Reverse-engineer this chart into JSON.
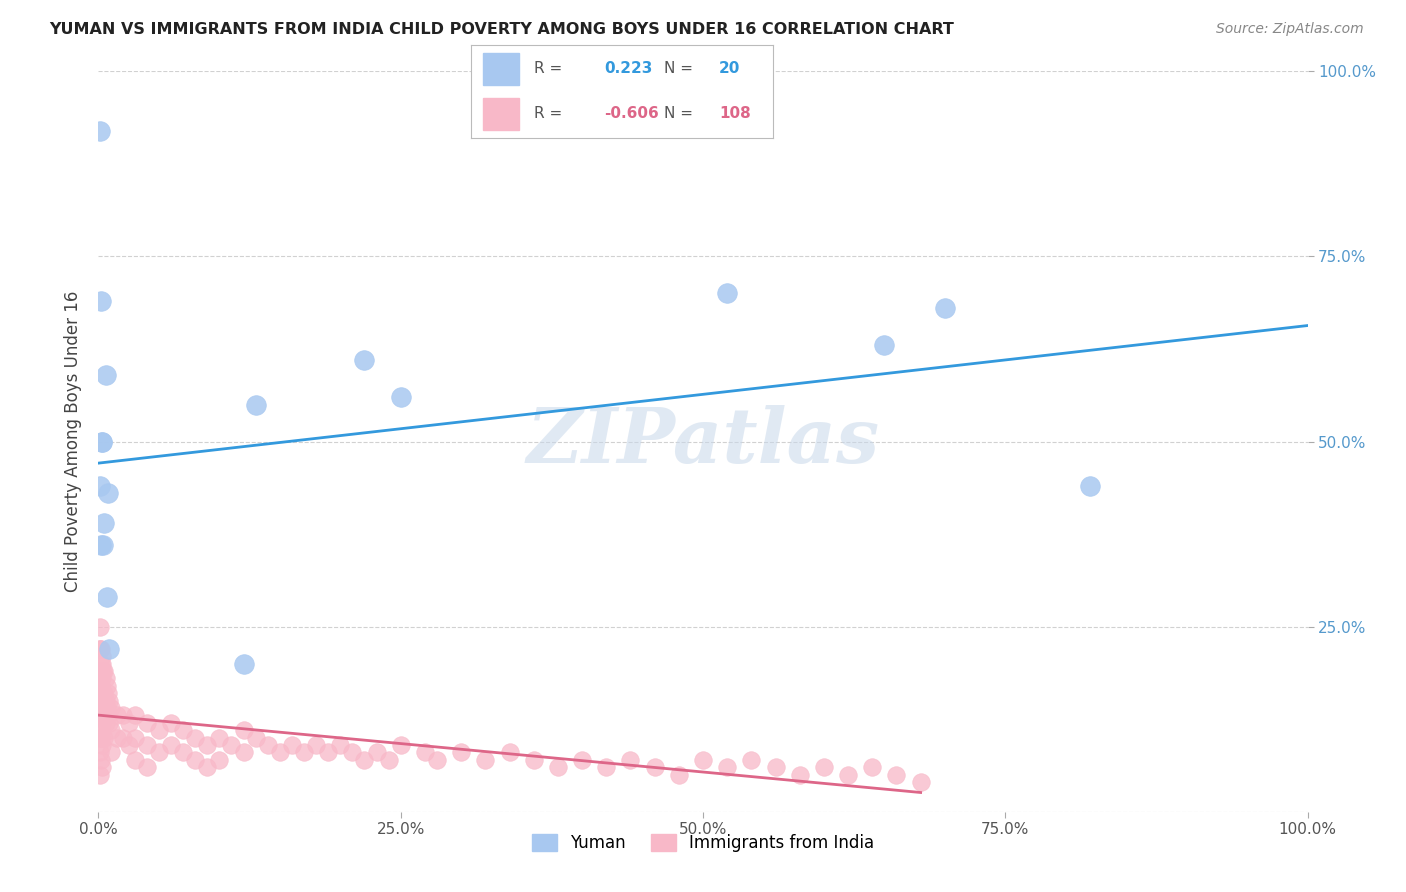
{
  "title": "YUMAN VS IMMIGRANTS FROM INDIA CHILD POVERTY AMONG BOYS UNDER 16 CORRELATION CHART",
  "source": "Source: ZipAtlas.com",
  "ylabel": "Child Poverty Among Boys Under 16",
  "background_color": "#ffffff",
  "grid_color": "#cccccc",
  "watermark": "ZIPatlas",
  "series1": {
    "label": "Yuman",
    "color": "#a8c8f0",
    "line_color": "#3399dd",
    "R": 0.223,
    "N": 20,
    "x": [
      0.001,
      0.001,
      0.002,
      0.002,
      0.003,
      0.003,
      0.004,
      0.005,
      0.006,
      0.007,
      0.008,
      0.009,
      0.12,
      0.13,
      0.22,
      0.25,
      0.52,
      0.65,
      0.7,
      0.82
    ],
    "y": [
      0.44,
      0.92,
      0.69,
      0.36,
      0.5,
      0.5,
      0.36,
      0.39,
      0.59,
      0.29,
      0.43,
      0.22,
      0.2,
      0.55,
      0.61,
      0.56,
      0.7,
      0.63,
      0.68,
      0.44
    ]
  },
  "series2": {
    "label": "Immigrants from India",
    "color": "#f8b8c8",
    "line_color": "#dd6688",
    "R": -0.606,
    "N": 108,
    "x": [
      0.001,
      0.001,
      0.001,
      0.001,
      0.001,
      0.001,
      0.001,
      0.001,
      0.001,
      0.001,
      0.002,
      0.002,
      0.002,
      0.002,
      0.002,
      0.002,
      0.002,
      0.002,
      0.002,
      0.002,
      0.003,
      0.003,
      0.003,
      0.003,
      0.003,
      0.003,
      0.003,
      0.004,
      0.004,
      0.004,
      0.005,
      0.005,
      0.005,
      0.005,
      0.006,
      0.006,
      0.006,
      0.007,
      0.007,
      0.008,
      0.008,
      0.009,
      0.009,
      0.01,
      0.01,
      0.01,
      0.015,
      0.015,
      0.02,
      0.02,
      0.025,
      0.025,
      0.03,
      0.03,
      0.03,
      0.04,
      0.04,
      0.04,
      0.05,
      0.05,
      0.06,
      0.06,
      0.07,
      0.07,
      0.08,
      0.08,
      0.09,
      0.09,
      0.1,
      0.1,
      0.11,
      0.12,
      0.12,
      0.13,
      0.14,
      0.15,
      0.16,
      0.17,
      0.18,
      0.19,
      0.2,
      0.21,
      0.22,
      0.23,
      0.24,
      0.25,
      0.27,
      0.28,
      0.3,
      0.32,
      0.34,
      0.36,
      0.38,
      0.4,
      0.42,
      0.44,
      0.46,
      0.48,
      0.5,
      0.52,
      0.54,
      0.56,
      0.58,
      0.6,
      0.62,
      0.64,
      0.66,
      0.68
    ],
    "y": [
      0.22,
      0.19,
      0.25,
      0.17,
      0.13,
      0.1,
      0.22,
      0.15,
      0.08,
      0.05,
      0.22,
      0.19,
      0.16,
      0.13,
      0.1,
      0.07,
      0.2,
      0.17,
      0.14,
      0.11,
      0.21,
      0.18,
      0.15,
      0.12,
      0.09,
      0.06,
      0.2,
      0.19,
      0.16,
      0.13,
      0.19,
      0.16,
      0.13,
      0.1,
      0.18,
      0.15,
      0.12,
      0.17,
      0.14,
      0.16,
      0.13,
      0.15,
      0.12,
      0.14,
      0.11,
      0.08,
      0.13,
      0.1,
      0.13,
      0.1,
      0.12,
      0.09,
      0.13,
      0.1,
      0.07,
      0.12,
      0.09,
      0.06,
      0.11,
      0.08,
      0.12,
      0.09,
      0.11,
      0.08,
      0.1,
      0.07,
      0.09,
      0.06,
      0.1,
      0.07,
      0.09,
      0.11,
      0.08,
      0.1,
      0.09,
      0.08,
      0.09,
      0.08,
      0.09,
      0.08,
      0.09,
      0.08,
      0.07,
      0.08,
      0.07,
      0.09,
      0.08,
      0.07,
      0.08,
      0.07,
      0.08,
      0.07,
      0.06,
      0.07,
      0.06,
      0.07,
      0.06,
      0.05,
      0.07,
      0.06,
      0.07,
      0.06,
      0.05,
      0.06,
      0.05,
      0.06,
      0.05,
      0.04
    ]
  },
  "legend_box": {
    "R1_label": "R = ",
    "R1_value": "0.223",
    "N1_label": "N = ",
    "N1_value": "20",
    "R2_label": "R = ",
    "R2_value": "-0.606",
    "N2_label": "N = ",
    "N2_value": "108",
    "color1": "#a8c8f0",
    "color2": "#f8b8c8",
    "text_color1": "#3399dd",
    "text_color2": "#dd6688"
  }
}
